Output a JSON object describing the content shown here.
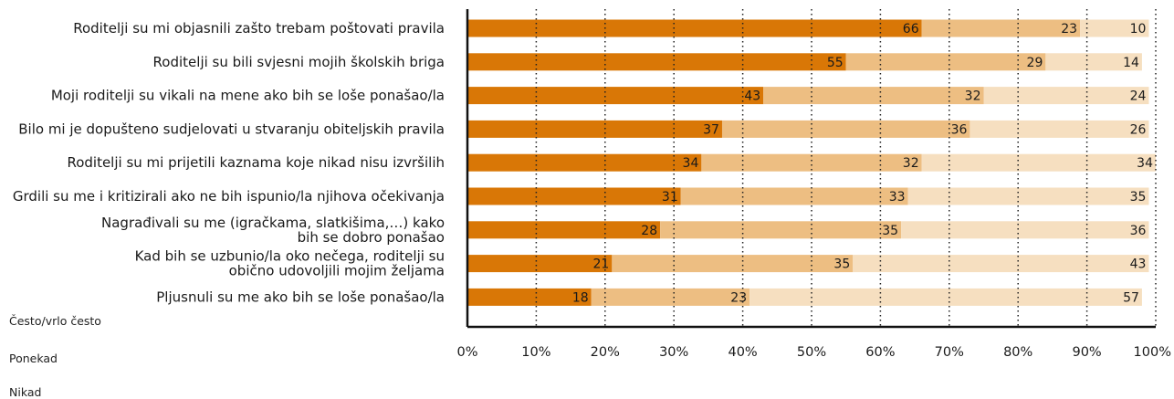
{
  "chart_data": {
    "type": "bar",
    "orientation": "horizontal",
    "stacked": true,
    "categories": [
      [
        "Roditelji su mi objasnili zašto trebam poštovati pravila"
      ],
      [
        "Roditelji su bili svjesni mojih školskih briga"
      ],
      [
        "Moji roditelji su vikali na mene ako bih se loše ponašao/la"
      ],
      [
        "Bilo mi je dopušteno sudjelovati u stvaranju obiteljskih pravila"
      ],
      [
        "Roditelji su mi prijetili kaznama koje nikad nisu izvršilih"
      ],
      [
        "Grdili su me i kritizirali ako ne bih ispunio/la njihova očekivanja"
      ],
      [
        "Nagrađivali su me (igračkama, slatkišima,…) kako",
        "bih se dobro ponašao"
      ],
      [
        "Kad bih se uzbunio/la oko nečega, roditelji su",
        "obično udovoljili mojim željama"
      ],
      [
        "Pljusnuli su me ako bih se loše ponašao/la"
      ]
    ],
    "series": [
      {
        "name": "Često/vrlo često",
        "color": "#d97706",
        "values": [
          66,
          55,
          43,
          37,
          34,
          31,
          28,
          21,
          18
        ]
      },
      {
        "name": "Ponekad",
        "color": "#edbe82",
        "values": [
          23,
          29,
          32,
          36,
          32,
          33,
          35,
          35,
          23
        ]
      },
      {
        "name": "Nikad",
        "color": "#f6dfc0",
        "values": [
          10,
          14,
          24,
          26,
          34,
          35,
          36,
          43,
          57
        ]
      }
    ],
    "xlim": [
      0,
      100
    ],
    "xticks": [
      "0%",
      "10%",
      "20%",
      "30%",
      "40%",
      "50%",
      "60%",
      "70%",
      "80%",
      "90%",
      "100%"
    ],
    "grid": "vertical dotted",
    "legend": "bottom-left"
  }
}
